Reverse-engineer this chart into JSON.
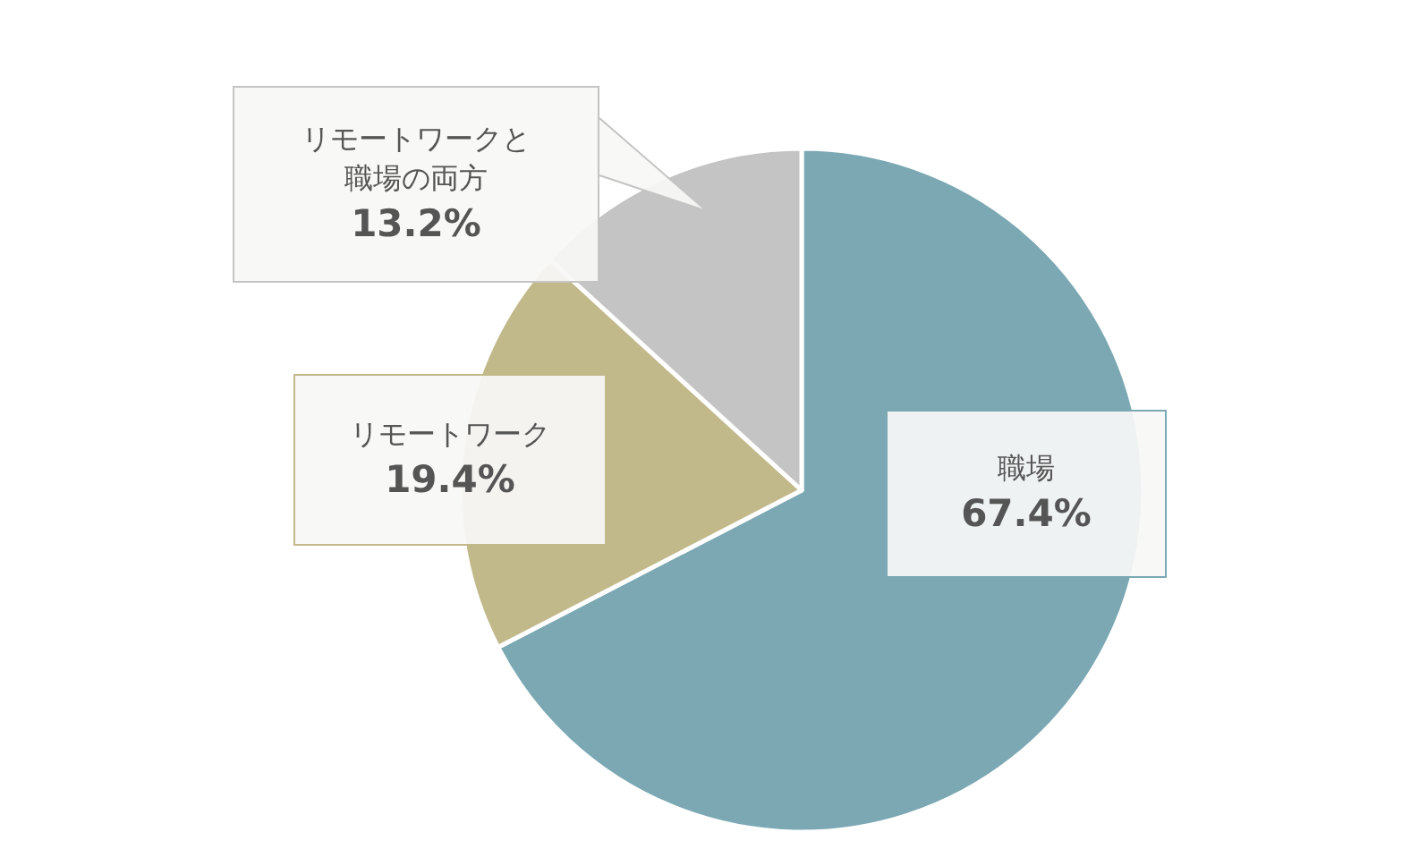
{
  "chart_data": {
    "type": "pie",
    "categories": [
      "職場",
      "リモートワーク",
      "リモートワークと職場の両方"
    ],
    "values": [
      67.4,
      19.4,
      13.2
    ],
    "value_labels": [
      "67.4%",
      "19.4%",
      "13.2%"
    ],
    "colors": [
      "#7ba8b3",
      "#c2b98b",
      "#c4c4c4"
    ],
    "legend": false
  }
}
